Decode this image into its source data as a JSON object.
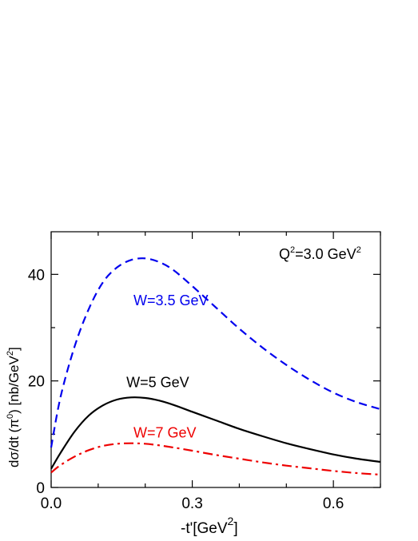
{
  "chart_data": {
    "type": "line",
    "annotation_prefix": "Q",
    "annotation_exp": "2",
    "annotation_mid": "=3.0 GeV",
    "annotation_unit_exp": "2",
    "xlabel": "-t'[GeV",
    "xlabel_exp": "2",
    "xlabel_close": "]",
    "ylabel": "dσ/dt (π",
    "ylabel_exp": "0",
    "ylabel_mid": ")  [nb/GeV",
    "ylabel_exp2": "2",
    "ylabel_close": "]",
    "xlim": [
      0.0,
      0.7
    ],
    "ylim": [
      0,
      48
    ],
    "x_ticks": [
      0.0,
      0.3,
      0.6
    ],
    "x_tick_labels": [
      "0.0",
      "0.3",
      "0.6"
    ],
    "y_ticks": [
      0,
      20,
      40
    ],
    "y_tick_labels": [
      "0",
      "20",
      "40"
    ],
    "grid": false,
    "series": [
      {
        "name": "W=3.5 GeV",
        "color": "#0000ee",
        "style": "dashed",
        "x": [
          0.0,
          0.02,
          0.05,
          0.08,
          0.11,
          0.14,
          0.17,
          0.2,
          0.23,
          0.26,
          0.3,
          0.35,
          0.4,
          0.45,
          0.5,
          0.55,
          0.6,
          0.65,
          0.7
        ],
        "y": [
          7.5,
          17.0,
          26.5,
          33.5,
          38.5,
          41.3,
          42.7,
          43.0,
          42.3,
          40.8,
          37.8,
          33.8,
          29.8,
          26.2,
          23.0,
          20.2,
          17.8,
          16.0,
          14.7
        ]
      },
      {
        "name": "W=5 GeV",
        "color": "#000000",
        "style": "solid",
        "x": [
          0.0,
          0.02,
          0.05,
          0.08,
          0.11,
          0.14,
          0.17,
          0.2,
          0.23,
          0.26,
          0.3,
          0.35,
          0.4,
          0.45,
          0.5,
          0.55,
          0.6,
          0.65,
          0.7
        ],
        "y": [
          3.5,
          6.5,
          10.5,
          13.5,
          15.4,
          16.5,
          16.9,
          16.8,
          16.3,
          15.5,
          14.2,
          12.6,
          11.0,
          9.6,
          8.3,
          7.2,
          6.2,
          5.4,
          4.8
        ]
      },
      {
        "name": "W=7 GeV",
        "color": "#ee0000",
        "style": "dashdot",
        "x": [
          0.0,
          0.02,
          0.05,
          0.08,
          0.11,
          0.14,
          0.17,
          0.2,
          0.23,
          0.26,
          0.3,
          0.35,
          0.4,
          0.45,
          0.5,
          0.55,
          0.6,
          0.65,
          0.7
        ],
        "y": [
          2.8,
          4.2,
          5.8,
          7.0,
          7.8,
          8.2,
          8.3,
          8.2,
          7.9,
          7.5,
          6.9,
          6.1,
          5.4,
          4.7,
          4.1,
          3.6,
          3.1,
          2.7,
          2.4
        ]
      }
    ]
  }
}
